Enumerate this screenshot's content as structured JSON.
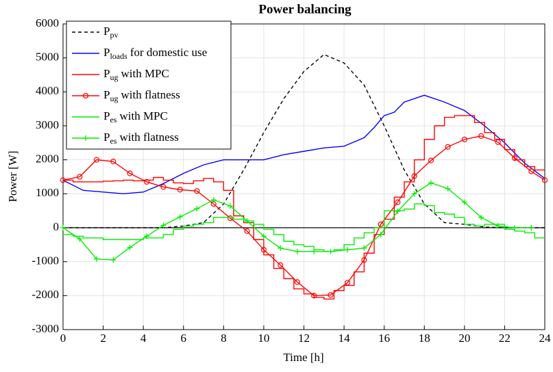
{
  "chart_data": {
    "type": "line",
    "title": "Power balancing",
    "xlabel": "Time [h]",
    "ylabel": "Power [W]",
    "xlim": [
      0,
      24
    ],
    "xticks": [
      0,
      2,
      4,
      6,
      8,
      10,
      12,
      14,
      16,
      18,
      20,
      22,
      24
    ],
    "ylim": [
      -3000,
      6000
    ],
    "yticks": [
      -3000,
      -2000,
      -1000,
      0,
      1000,
      2000,
      3000,
      4000,
      5000,
      6000
    ],
    "grid": true,
    "legend": "upper left",
    "zero_line": true,
    "series": [
      {
        "name": {
          "symbol": "P",
          "sub": "pv",
          "text": ""
        },
        "color": "#000000",
        "linestyle": "dashed",
        "drawstyle": "default",
        "marker": "none",
        "x": [
          0,
          1,
          2,
          3,
          4,
          5,
          6,
          7,
          8,
          9,
          10,
          11,
          12,
          13,
          14,
          15,
          16,
          17,
          18,
          19,
          20,
          21,
          22,
          23,
          24
        ],
        "values": [
          0,
          0,
          0,
          0,
          0,
          0,
          50,
          150,
          700,
          1700,
          2800,
          3800,
          4600,
          5100,
          4850,
          4200,
          3000,
          1700,
          700,
          150,
          100,
          20,
          0,
          0,
          0
        ]
      },
      {
        "name": {
          "symbol": "P",
          "sub": "loads",
          "text": "for domestic use"
        },
        "color": "#0000ff",
        "linestyle": "solid",
        "drawstyle": "default",
        "marker": "none",
        "x": [
          0,
          1,
          2,
          3,
          4,
          5,
          6,
          7,
          8,
          9,
          10,
          11,
          12,
          13,
          14,
          15,
          15.5,
          16,
          16.5,
          17,
          18,
          19,
          20,
          21,
          22,
          23,
          24
        ],
        "values": [
          1400,
          1100,
          1050,
          1000,
          1050,
          1300,
          1600,
          1850,
          2000,
          2000,
          2000,
          2150,
          2250,
          2350,
          2400,
          2650,
          2950,
          3300,
          3400,
          3700,
          3900,
          3700,
          3450,
          3000,
          2500,
          1900,
          1450
        ]
      },
      {
        "name": {
          "symbol": "P",
          "sub": "ug",
          "text": "with MPC"
        },
        "color": "#ff0000",
        "linestyle": "solid",
        "drawstyle": "steps-post",
        "marker": "none",
        "x": [
          0,
          0.5,
          1,
          1.5,
          2,
          2.5,
          3,
          3.5,
          4,
          4.5,
          5,
          5.5,
          6,
          6.5,
          7,
          7.5,
          8,
          8.5,
          9,
          9.5,
          10,
          10.5,
          11,
          11.5,
          12,
          12.5,
          13,
          13.5,
          14,
          14.5,
          15,
          15.5,
          16,
          16.5,
          17,
          17.5,
          18,
          18.5,
          19,
          19.5,
          20,
          20.5,
          21,
          21.5,
          22,
          22.5,
          23,
          23.5
        ],
        "values": [
          1400,
          1350,
          1350,
          1350,
          1370,
          1380,
          1400,
          1380,
          1400,
          1480,
          1400,
          1320,
          1300,
          1380,
          1450,
          1350,
          1100,
          350,
          150,
          -350,
          -800,
          -1200,
          -1500,
          -1800,
          -1950,
          -2050,
          -2100,
          -1850,
          -1700,
          -1300,
          -750,
          -200,
          250,
          900,
          1350,
          2000,
          2600,
          3000,
          3250,
          3300,
          3300,
          3100,
          2800,
          2600,
          2300,
          2000,
          1800,
          1700
        ]
      },
      {
        "name": {
          "symbol": "P",
          "sub": "ug",
          "text": "with flatness"
        },
        "color": "#ff0000",
        "linestyle": "solid",
        "drawstyle": "default",
        "marker": "circle",
        "x": [
          0,
          0.83,
          1.67,
          2.5,
          3.33,
          4.17,
          5,
          5.83,
          6.67,
          7.5,
          8.33,
          9.17,
          10,
          10.83,
          11.67,
          12.5,
          13.33,
          14.17,
          15,
          15.83,
          16.67,
          17.5,
          18.33,
          19.17,
          20,
          20.83,
          21.67,
          22.5,
          23.33,
          24
        ],
        "values": [
          1400,
          1500,
          2000,
          1950,
          1600,
          1350,
          1200,
          1120,
          1080,
          700,
          280,
          -100,
          -650,
          -1100,
          -1600,
          -2000,
          -1980,
          -1620,
          -950,
          100,
          750,
          1520,
          1980,
          2380,
          2600,
          2700,
          2520,
          2050,
          1660,
          1400
        ]
      },
      {
        "name": {
          "symbol": "P",
          "sub": "es",
          "text": "with MPC"
        },
        "color": "#00ee00",
        "linestyle": "solid",
        "drawstyle": "steps-post",
        "marker": "none",
        "x": [
          0,
          0.5,
          1,
          1.5,
          2,
          2.5,
          3,
          3.5,
          4,
          4.5,
          5,
          5.5,
          6,
          6.5,
          7,
          7.5,
          8,
          8.5,
          9,
          9.5,
          10,
          10.5,
          11,
          11.5,
          12,
          12.5,
          13,
          13.5,
          14,
          14.5,
          15,
          15.5,
          16,
          16.5,
          17,
          17.5,
          18,
          18.5,
          19,
          19.5,
          20,
          20.5,
          21,
          21.5,
          22,
          22.5,
          23,
          23.5
        ],
        "values": [
          -200,
          -250,
          -300,
          -300,
          -350,
          -350,
          -350,
          -350,
          -300,
          -300,
          -200,
          -50,
          50,
          100,
          150,
          300,
          300,
          250,
          200,
          100,
          -50,
          -200,
          -400,
          -500,
          -550,
          -650,
          -700,
          -650,
          -500,
          -300,
          -150,
          0,
          500,
          500,
          550,
          700,
          650,
          450,
          400,
          300,
          100,
          50,
          100,
          100,
          -50,
          -100,
          -150,
          -300
        ]
      },
      {
        "name": {
          "symbol": "P",
          "sub": "es",
          "text": "with flatness"
        },
        "color": "#00ee00",
        "linestyle": "solid",
        "drawstyle": "default",
        "marker": "plus",
        "x": [
          0,
          0.83,
          1.67,
          2.5,
          3.33,
          4.17,
          5,
          5.83,
          6.67,
          7.5,
          8.33,
          9.17,
          10,
          10.83,
          11.67,
          12.5,
          13.33,
          14.17,
          15,
          15.83,
          16.67,
          17.5,
          18.33,
          19.17,
          20,
          20.83,
          21.67,
          22.5,
          23.33
        ],
        "values": [
          0,
          -330,
          -920,
          -950,
          -580,
          -250,
          70,
          320,
          560,
          820,
          640,
          200,
          -250,
          -600,
          -700,
          -700,
          -700,
          -650,
          -600,
          -200,
          480,
          1000,
          1320,
          1150,
          750,
          300,
          50,
          0,
          0
        ]
      }
    ]
  }
}
